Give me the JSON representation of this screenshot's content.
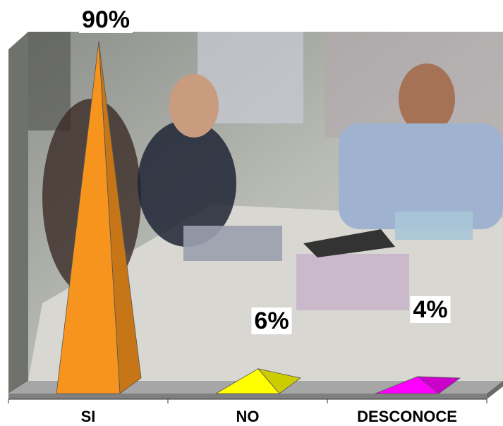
{
  "chart_data": {
    "type": "pyramid",
    "categories": [
      "SI",
      "NO",
      "DESCONOCE"
    ],
    "values": [
      90,
      6,
      4
    ],
    "value_labels": [
      "90%",
      "6%",
      "4%"
    ],
    "colors": [
      "#f7941d",
      "#ffff00",
      "#ff00ff"
    ],
    "ylim": [
      0,
      100
    ]
  }
}
